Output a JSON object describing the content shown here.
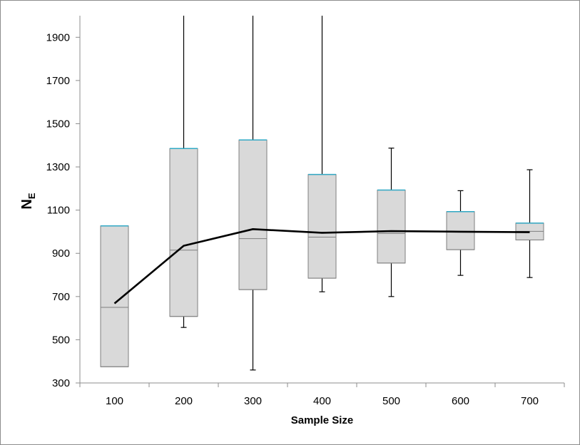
{
  "chart_data": {
    "type": "box",
    "xlabel": "Sample Size",
    "ylabel_main": "N",
    "ylabel_sub": "E",
    "ylim": [
      300,
      2000
    ],
    "yticks": [
      300,
      500,
      700,
      900,
      1100,
      1300,
      1500,
      1700,
      1900
    ],
    "categories": [
      "100",
      "200",
      "300",
      "400",
      "500",
      "600",
      "700"
    ],
    "boxes": [
      {
        "category": "100",
        "whisker_low": 375,
        "q1": 375,
        "median": 650,
        "q3": 1027,
        "whisker_high": 1027
      },
      {
        "category": "200",
        "whisker_low": 557,
        "q1": 608,
        "median": 915,
        "q3": 1385,
        "whisker_high": 2000
      },
      {
        "category": "300",
        "whisker_low": 360,
        "q1": 732,
        "median": 968,
        "q3": 1425,
        "whisker_high": 2000
      },
      {
        "category": "400",
        "whisker_low": 722,
        "q1": 785,
        "median": 975,
        "q3": 1265,
        "whisker_high": 2000
      },
      {
        "category": "500",
        "whisker_low": 700,
        "q1": 855,
        "median": 992,
        "q3": 1193,
        "whisker_high": 1387
      },
      {
        "category": "600",
        "whisker_low": 798,
        "q1": 917,
        "median": 1000,
        "q3": 1093,
        "whisker_high": 1190
      },
      {
        "category": "700",
        "whisker_low": 788,
        "q1": 962,
        "median": 1002,
        "q3": 1040,
        "whisker_high": 1287
      }
    ],
    "mean_line": [
      668,
      935,
      1012,
      995,
      1003,
      1000,
      998
    ],
    "grid": false,
    "colors": {
      "box_fill": "#d9d9d9",
      "box_stroke": "#7f7f7f",
      "q3_accent": "#31a9c5",
      "whisker": "#000000",
      "mean_line": "#000000",
      "axis": "#8c8c8c"
    }
  }
}
